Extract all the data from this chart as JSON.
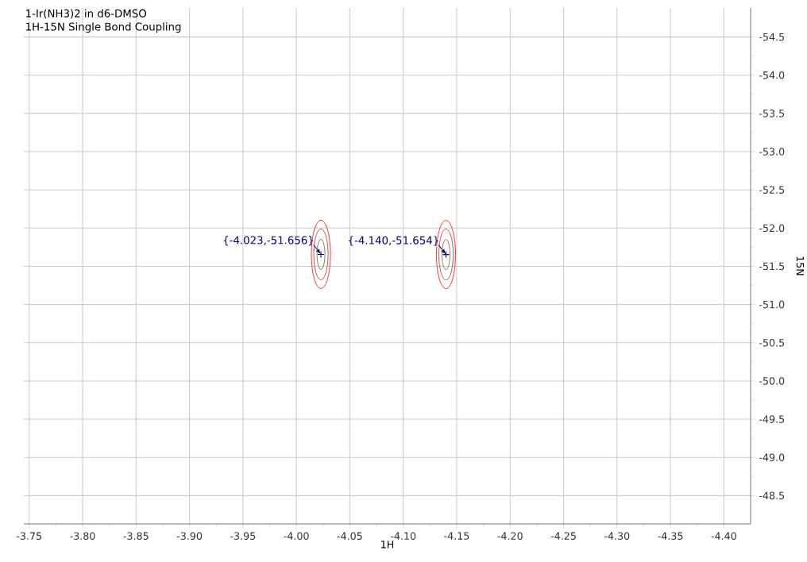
{
  "chart_data": {
    "type": "scatter",
    "title": "1-Ir(NH3)2 in d6-DMSO",
    "subtitle": "1H-15N Single Bond Coupling",
    "xlabel": "1H",
    "ylabel": "15N",
    "x": [
      -4.023,
      -4.14
    ],
    "values": [
      -51.656,
      -51.654
    ],
    "color": "#000080",
    "marker": "cross",
    "grid": true,
    "xlim": [
      -3.745,
      -4.425
    ],
    "xticks": [
      {
        "value": -3.75,
        "label": "-3.75"
      },
      {
        "value": -3.8,
        "label": "-3.80"
      },
      {
        "value": -3.85,
        "label": "-3.85"
      },
      {
        "value": -3.9,
        "label": "-3.90"
      },
      {
        "value": -3.95,
        "label": "-3.95"
      },
      {
        "value": -4.0,
        "label": "-4.00"
      },
      {
        "value": -4.05,
        "label": "-4.05"
      },
      {
        "value": -4.1,
        "label": "-4.10"
      },
      {
        "value": -4.15,
        "label": "-4.15"
      },
      {
        "value": -4.2,
        "label": "-4.20"
      },
      {
        "value": -4.25,
        "label": "-4.25"
      },
      {
        "value": -4.3,
        "label": "-4.30"
      },
      {
        "value": -4.35,
        "label": "-4.35"
      },
      {
        "value": -4.4,
        "label": "-4.40"
      }
    ],
    "ylim": [
      -48.13,
      -54.88
    ],
    "yticks": [
      {
        "value": -54.5,
        "label": "-54.5"
      },
      {
        "value": -54.0,
        "label": "-54.0"
      },
      {
        "value": -53.5,
        "label": "-53.5"
      },
      {
        "value": -53.0,
        "label": "-53.0"
      },
      {
        "value": -52.5,
        "label": "-52.5"
      },
      {
        "value": -52.0,
        "label": "-52.0"
      },
      {
        "value": -51.5,
        "label": "-51.5"
      },
      {
        "value": -51.0,
        "label": "-51.0"
      },
      {
        "value": -50.5,
        "label": "-50.5"
      },
      {
        "value": -50.0,
        "label": "-50.0"
      },
      {
        "value": -49.5,
        "label": "-49.5"
      },
      {
        "value": -49.0,
        "label": "-49.0"
      },
      {
        "value": -48.5,
        "label": "-48.5"
      }
    ],
    "annotations": [
      {
        "text": "{-4.023,-51.656}",
        "x": -4.023,
        "y": -51.656
      },
      {
        "text": "{-4.140,-51.654}",
        "x": -4.14,
        "y": -51.654
      }
    ]
  }
}
